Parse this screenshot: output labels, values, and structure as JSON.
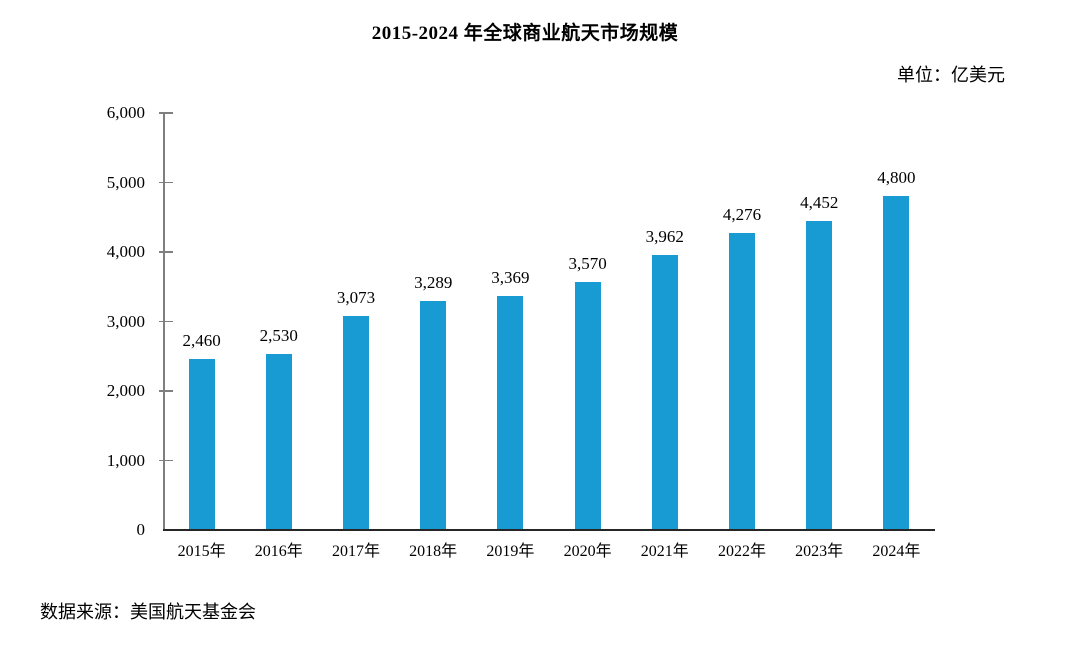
{
  "page": {
    "title": "2015-2024 年全球商业航天市场规模",
    "unit_label": "单位：亿美元",
    "source_label": "数据来源：美国航天基金会"
  },
  "colors": {
    "bar": "#189AD3",
    "y_axis": "#7F7F7F",
    "x_axis": "#262626",
    "text": "#000000"
  },
  "chart_data": {
    "type": "bar",
    "title": "2015-2024 年全球商业航天市场规模",
    "unit": "亿美元",
    "source": "美国航天基金会",
    "categories": [
      "2015年",
      "2016年",
      "2017年",
      "2018年",
      "2019年",
      "2020年",
      "2021年",
      "2022年",
      "2023年",
      "2024年"
    ],
    "values": [
      2460,
      2530,
      3073,
      3289,
      3369,
      3570,
      3962,
      4276,
      4452,
      4800
    ],
    "value_labels": [
      "2,460",
      "2,530",
      "3,073",
      "3,289",
      "3,369",
      "3,570",
      "3,962",
      "4,276",
      "4,452",
      "4,800"
    ],
    "ylim": [
      0,
      6000
    ],
    "ytick_step": 1000,
    "ytick_labels": [
      "0",
      "1,000",
      "2,000",
      "3,000",
      "4,000",
      "5,000",
      "6,000"
    ],
    "grid": false,
    "legend": "none",
    "bar_color": "#189AD3"
  }
}
